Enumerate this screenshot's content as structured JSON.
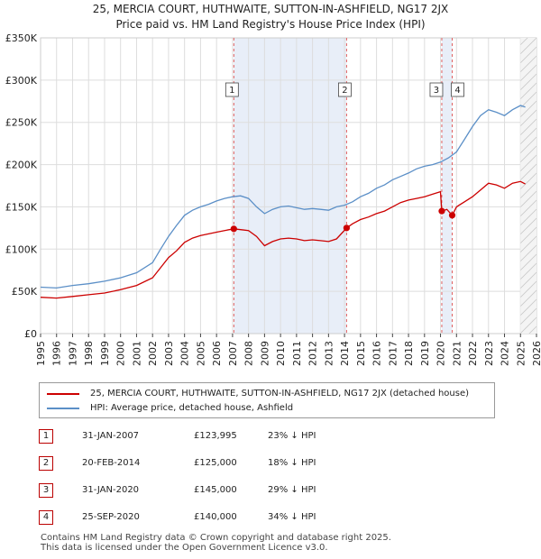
{
  "title_line1": "25, MERCIA COURT, HUTHWAITE, SUTTON-IN-ASHFIELD, NG17 2JX",
  "title_line2": "Price paid vs. HM Land Registry's House Price Index (HPI)",
  "colors": {
    "property": "#cc0000",
    "hpi": "#5b8fc7",
    "marker_line": "#e06060",
    "shade": "#e8eef8"
  },
  "legend": {
    "property_label": "25, MERCIA COURT, HUTHWAITE, SUTTON-IN-ASHFIELD, NG17 2JX (detached house)",
    "hpi_label": "HPI: Average price, detached house, Ashfield"
  },
  "sales": [
    {
      "num": "1",
      "date": "31-JAN-2007",
      "price": "£123,995",
      "hpi": "23% ↓ HPI"
    },
    {
      "num": "2",
      "date": "20-FEB-2014",
      "price": "£125,000",
      "hpi": "18% ↓ HPI"
    },
    {
      "num": "3",
      "date": "31-JAN-2020",
      "price": "£145,000",
      "hpi": "29% ↓ HPI"
    },
    {
      "num": "4",
      "date": "25-SEP-2020",
      "price": "£140,000",
      "hpi": "34% ↓ HPI"
    }
  ],
  "footer_line1": "Contains HM Land Registry data © Crown copyright and database right 2025.",
  "footer_line2": "This data is licensed under the Open Government Licence v3.0.",
  "chart_data": {
    "type": "line",
    "x_range": [
      1995,
      2026
    ],
    "ylim": [
      0,
      350000
    ],
    "y_ticks": [
      {
        "value": 0,
        "label": "£0"
      },
      {
        "value": 50000,
        "label": "£50K"
      },
      {
        "value": 100000,
        "label": "£100K"
      },
      {
        "value": 150000,
        "label": "£150K"
      },
      {
        "value": 200000,
        "label": "£200K"
      },
      {
        "value": 250000,
        "label": "£250K"
      },
      {
        "value": 300000,
        "label": "£300K"
      },
      {
        "value": 350000,
        "label": "£350K"
      }
    ],
    "x_ticks": [
      "1995",
      "1996",
      "1997",
      "1998",
      "1999",
      "2000",
      "2001",
      "2002",
      "2003",
      "2004",
      "2005",
      "2006",
      "2007",
      "2008",
      "2009",
      "2010",
      "2011",
      "2012",
      "2013",
      "2014",
      "2015",
      "2016",
      "2017",
      "2018",
      "2019",
      "2020",
      "2021",
      "2022",
      "2023",
      "2024",
      "2025",
      "2026"
    ],
    "grid": true,
    "shaded_spans": [
      [
        2007.08,
        2014.13
      ],
      [
        2020.08,
        2020.73
      ]
    ],
    "forecast_from": 2025.0,
    "markers": [
      {
        "label": "1",
        "x": 2007.08,
        "y": 123995
      },
      {
        "label": "2",
        "x": 2014.13,
        "y": 125000
      },
      {
        "label": "3",
        "x": 2020.08,
        "y": 145000
      },
      {
        "label": "4",
        "x": 2020.73,
        "y": 140000
      }
    ],
    "series": [
      {
        "name": "25, MERCIA COURT, HUTHWAITE, SUTTON-IN-ASHFIELD, NG17 2JX (detached house)",
        "points": [
          [
            1995.0,
            43000
          ],
          [
            1996.0,
            42000
          ],
          [
            1997.0,
            44000
          ],
          [
            1998.0,
            46000
          ],
          [
            1999.0,
            48000
          ],
          [
            2000.0,
            52000
          ],
          [
            2001.0,
            57000
          ],
          [
            2002.0,
            66000
          ],
          [
            2002.5,
            78000
          ],
          [
            2003.0,
            90000
          ],
          [
            2003.5,
            98000
          ],
          [
            2004.0,
            108000
          ],
          [
            2004.5,
            113000
          ],
          [
            2005.0,
            116000
          ],
          [
            2005.5,
            118000
          ],
          [
            2006.0,
            120000
          ],
          [
            2006.5,
            122000
          ],
          [
            2007.08,
            123995
          ],
          [
            2007.5,
            123000
          ],
          [
            2008.0,
            122000
          ],
          [
            2008.5,
            115000
          ],
          [
            2009.0,
            104000
          ],
          [
            2009.5,
            109000
          ],
          [
            2010.0,
            112000
          ],
          [
            2010.5,
            113000
          ],
          [
            2011.0,
            112000
          ],
          [
            2011.5,
            110000
          ],
          [
            2012.0,
            111000
          ],
          [
            2012.5,
            110000
          ],
          [
            2013.0,
            109000
          ],
          [
            2013.5,
            112000
          ],
          [
            2014.13,
            125000
          ],
          [
            2014.5,
            130000
          ],
          [
            2015.0,
            135000
          ],
          [
            2015.5,
            138000
          ],
          [
            2016.0,
            142000
          ],
          [
            2016.5,
            145000
          ],
          [
            2017.0,
            150000
          ],
          [
            2017.5,
            155000
          ],
          [
            2018.0,
            158000
          ],
          [
            2018.5,
            160000
          ],
          [
            2019.0,
            162000
          ],
          [
            2019.5,
            165000
          ],
          [
            2020.0,
            168000
          ],
          [
            2020.08,
            145000
          ],
          [
            2020.4,
            147000
          ],
          [
            2020.73,
            140000
          ],
          [
            2021.0,
            150000
          ],
          [
            2021.5,
            156000
          ],
          [
            2022.0,
            162000
          ],
          [
            2022.5,
            170000
          ],
          [
            2023.0,
            178000
          ],
          [
            2023.5,
            176000
          ],
          [
            2024.0,
            172000
          ],
          [
            2024.5,
            178000
          ],
          [
            2025.0,
            180000
          ],
          [
            2025.3,
            177000
          ]
        ]
      },
      {
        "name": "HPI: Average price, detached house, Ashfield",
        "points": [
          [
            1995.0,
            55000
          ],
          [
            1996.0,
            54000
          ],
          [
            1997.0,
            57000
          ],
          [
            1998.0,
            59000
          ],
          [
            1999.0,
            62000
          ],
          [
            2000.0,
            66000
          ],
          [
            2001.0,
            72000
          ],
          [
            2002.0,
            84000
          ],
          [
            2002.5,
            100000
          ],
          [
            2003.0,
            115000
          ],
          [
            2003.5,
            128000
          ],
          [
            2004.0,
            140000
          ],
          [
            2004.5,
            146000
          ],
          [
            2005.0,
            150000
          ],
          [
            2005.5,
            153000
          ],
          [
            2006.0,
            157000
          ],
          [
            2006.5,
            160000
          ],
          [
            2007.0,
            162000
          ],
          [
            2007.5,
            163000
          ],
          [
            2008.0,
            160000
          ],
          [
            2008.5,
            150000
          ],
          [
            2009.0,
            142000
          ],
          [
            2009.5,
            147000
          ],
          [
            2010.0,
            150000
          ],
          [
            2010.5,
            151000
          ],
          [
            2011.0,
            149000
          ],
          [
            2011.5,
            147000
          ],
          [
            2012.0,
            148000
          ],
          [
            2012.5,
            147000
          ],
          [
            2013.0,
            146000
          ],
          [
            2013.5,
            150000
          ],
          [
            2014.0,
            152000
          ],
          [
            2014.5,
            156000
          ],
          [
            2015.0,
            162000
          ],
          [
            2015.5,
            166000
          ],
          [
            2016.0,
            172000
          ],
          [
            2016.5,
            176000
          ],
          [
            2017.0,
            182000
          ],
          [
            2017.5,
            186000
          ],
          [
            2018.0,
            190000
          ],
          [
            2018.5,
            195000
          ],
          [
            2019.0,
            198000
          ],
          [
            2019.5,
            200000
          ],
          [
            2020.0,
            203000
          ],
          [
            2020.5,
            208000
          ],
          [
            2021.0,
            215000
          ],
          [
            2021.5,
            230000
          ],
          [
            2022.0,
            245000
          ],
          [
            2022.5,
            258000
          ],
          [
            2023.0,
            265000
          ],
          [
            2023.5,
            262000
          ],
          [
            2024.0,
            258000
          ],
          [
            2024.5,
            265000
          ],
          [
            2025.0,
            270000
          ],
          [
            2025.3,
            268000
          ]
        ]
      }
    ]
  }
}
